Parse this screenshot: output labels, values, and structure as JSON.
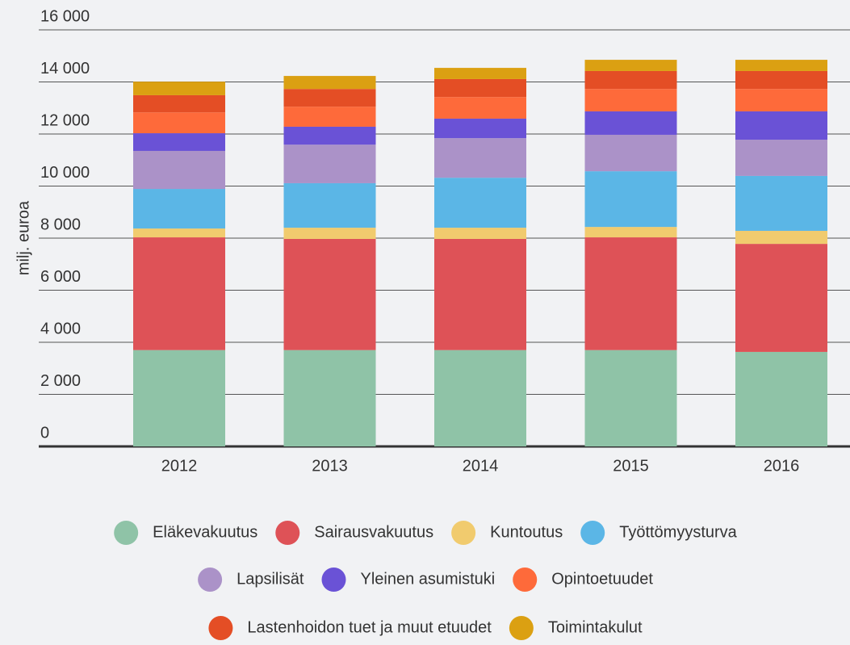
{
  "chart_data": {
    "type": "stacked_bar",
    "y_label": "milj. euroa",
    "categories": [
      "2012",
      "2013",
      "2014",
      "2015",
      "2016"
    ],
    "ylim": [
      0,
      16000
    ],
    "yticks": [
      0,
      {
        "value": 2000,
        "label": "2 000"
      },
      {
        "value": 4000,
        "label": "4 000"
      },
      {
        "value": 6000,
        "label": "6 000"
      },
      {
        "value": 8000,
        "label": "8 000"
      },
      {
        "value": 10000,
        "label": "10 000"
      },
      {
        "value": 12000,
        "label": "12 000"
      },
      {
        "value": 14000,
        "label": "14 000"
      },
      {
        "value": 16000,
        "label": "16 000"
      }
    ],
    "grid": true,
    "legend": "bottom",
    "series": [
      {
        "name": "Eläkevakuutus",
        "color": "#8fc3a7",
        "values": [
          3700,
          3700,
          3700,
          3700,
          3630
        ]
      },
      {
        "name": "Sairausvakuutus",
        "color": "#de5257",
        "values": [
          4330,
          4270,
          4270,
          4330,
          4150
        ]
      },
      {
        "name": "Kuntoutus",
        "color": "#f1cb6e",
        "values": [
          340,
          430,
          430,
          400,
          500
        ]
      },
      {
        "name": "Työttömyysturva",
        "color": "#5bb6e6",
        "values": [
          1520,
          1710,
          1920,
          2140,
          2110
        ]
      },
      {
        "name": "Lapsilisät",
        "color": "#ab92c8",
        "values": [
          1460,
          1480,
          1520,
          1400,
          1390
        ]
      },
      {
        "name": "Yleinen asumistuki",
        "color": "#6a52d6",
        "values": [
          680,
          690,
          750,
          900,
          1090
        ]
      },
      {
        "name": "Opintoetuudet",
        "color": "#fe6a3a",
        "values": [
          800,
          770,
          830,
          860,
          860
        ]
      },
      {
        "name": "Lastenhoidon tuet ja muut etuudet",
        "color": "#e44e25",
        "values": [
          660,
          680,
          690,
          690,
          690
        ]
      },
      {
        "name": "Toimintakulut",
        "color": "#dba012",
        "values": [
          520,
          500,
          430,
          430,
          430
        ]
      }
    ]
  }
}
